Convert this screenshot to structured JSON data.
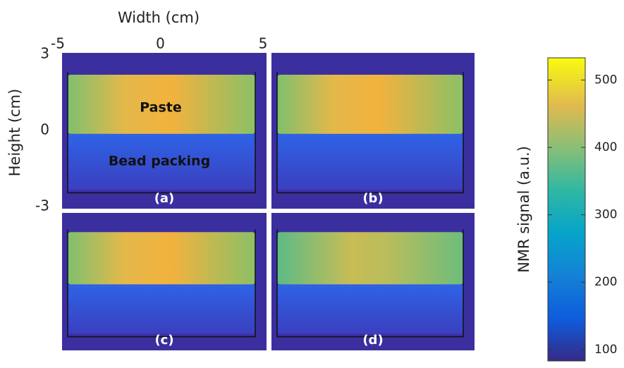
{
  "x_axis": {
    "label": "Width (cm)",
    "ticks": [
      -5,
      0,
      5
    ]
  },
  "y_axis": {
    "label": "Height (cm)",
    "ticks": [
      3,
      0,
      -3
    ]
  },
  "panels": [
    {
      "label": "(a)",
      "annotations": [
        "Paste",
        "Bead packing"
      ]
    },
    {
      "label": "(b)"
    },
    {
      "label": "(c)"
    },
    {
      "label": "(d)"
    }
  ],
  "colorbar": {
    "label": "NMR signal (a.u.)",
    "lim": [
      83,
      533
    ],
    "ticks": [
      100,
      200,
      300,
      400,
      500
    ]
  }
}
